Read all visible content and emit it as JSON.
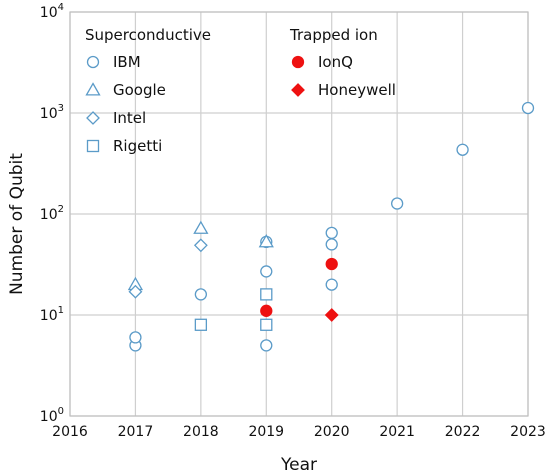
{
  "chart_data": {
    "type": "scatter",
    "xlabel": "Year",
    "ylabel": "Number of Qubit",
    "xlim": [
      2016,
      2023
    ],
    "ylim": [
      1,
      10000
    ],
    "yscale": "log",
    "x_ticks": [
      "2016",
      "2017",
      "2018",
      "2019",
      "2020",
      "2021",
      "2022",
      "2023"
    ],
    "y_ticks": [
      {
        "base": "10",
        "exp": "0"
      },
      {
        "base": "10",
        "exp": "1"
      },
      {
        "base": "10",
        "exp": "2"
      },
      {
        "base": "10",
        "exp": "3"
      },
      {
        "base": "10",
        "exp": "4"
      }
    ],
    "grid": true,
    "legend": {
      "placement": "top-left",
      "groups": [
        {
          "title": "Superconductive",
          "entries": [
            "IBM",
            "Google",
            "Intel",
            "Rigetti"
          ]
        },
        {
          "title": "Trapped ion",
          "entries": [
            "IonQ",
            "Honeywell"
          ]
        }
      ]
    },
    "series": [
      {
        "name": "IBM",
        "marker": "circle",
        "filled": false,
        "color": "#5b9bc8",
        "points": [
          [
            2017,
            5
          ],
          [
            2017,
            6
          ],
          [
            2018,
            16
          ],
          [
            2019,
            5
          ],
          [
            2019,
            27
          ],
          [
            2019,
            53
          ],
          [
            2020,
            20
          ],
          [
            2020,
            50
          ],
          [
            2020,
            65
          ],
          [
            2021,
            127
          ],
          [
            2022,
            433
          ],
          [
            2023,
            1121
          ]
        ]
      },
      {
        "name": "Google",
        "marker": "triangle",
        "filled": false,
        "color": "#5b9bc8",
        "points": [
          [
            2017,
            20
          ],
          [
            2018,
            72
          ],
          [
            2019,
            53
          ]
        ]
      },
      {
        "name": "Intel",
        "marker": "diamond",
        "filled": false,
        "color": "#5b9bc8",
        "points": [
          [
            2017,
            17
          ],
          [
            2018,
            49
          ]
        ]
      },
      {
        "name": "Rigetti",
        "marker": "square",
        "filled": false,
        "color": "#5b9bc8",
        "points": [
          [
            2018,
            8
          ],
          [
            2019,
            8
          ],
          [
            2019,
            16
          ]
        ]
      },
      {
        "name": "IonQ",
        "marker": "circle",
        "filled": true,
        "color": "#ee1111",
        "points": [
          [
            2019,
            11
          ],
          [
            2020,
            32
          ]
        ]
      },
      {
        "name": "Honeywell",
        "marker": "diamond",
        "filled": true,
        "color": "#ee1111",
        "points": [
          [
            2020,
            10
          ]
        ]
      }
    ]
  }
}
